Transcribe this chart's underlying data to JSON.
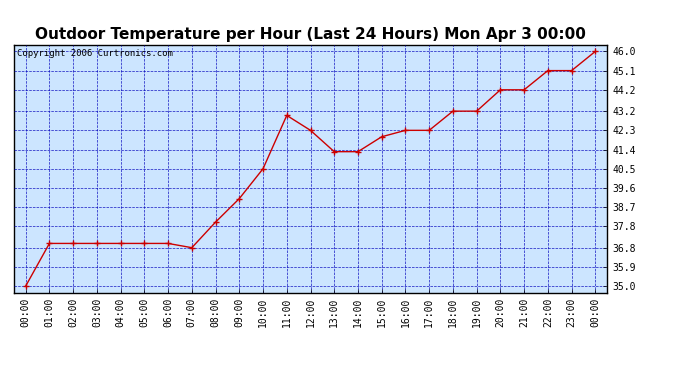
{
  "title": "Outdoor Temperature per Hour (Last 24 Hours) Mon Apr 3 00:00",
  "copyright": "Copyright 2006 Curtronics.com",
  "hours": [
    "00:00",
    "01:00",
    "02:00",
    "03:00",
    "04:00",
    "05:00",
    "06:00",
    "07:00",
    "08:00",
    "09:00",
    "10:00",
    "11:00",
    "12:00",
    "13:00",
    "14:00",
    "15:00",
    "16:00",
    "17:00",
    "18:00",
    "19:00",
    "20:00",
    "21:00",
    "22:00",
    "23:00",
    "00:00"
  ],
  "x_indices": [
    0,
    1,
    2,
    3,
    4,
    5,
    6,
    7,
    8,
    9,
    10,
    11,
    12,
    13,
    14,
    15,
    16,
    17,
    18,
    19,
    20,
    21,
    22,
    23,
    24
  ],
  "temperatures": [
    35.0,
    37.0,
    37.0,
    37.0,
    37.0,
    37.0,
    37.0,
    36.8,
    38.0,
    39.1,
    40.5,
    43.0,
    42.3,
    41.3,
    41.3,
    42.0,
    42.3,
    42.3,
    43.2,
    43.2,
    44.2,
    44.2,
    45.1,
    45.1,
    46.0
  ],
  "y_ticks": [
    35.0,
    35.9,
    36.8,
    37.8,
    38.7,
    39.6,
    40.5,
    41.4,
    42.3,
    43.2,
    44.2,
    45.1,
    46.0
  ],
  "ylim": [
    34.7,
    46.3
  ],
  "xlim": [
    -0.5,
    24.5
  ],
  "line_color": "#cc0000",
  "marker_color": "#cc0000",
  "bg_color": "#cce5ff",
  "grid_color": "#0000bb",
  "border_color": "#000000",
  "title_fontsize": 11,
  "tick_fontsize": 7,
  "copyright_fontsize": 6.5
}
